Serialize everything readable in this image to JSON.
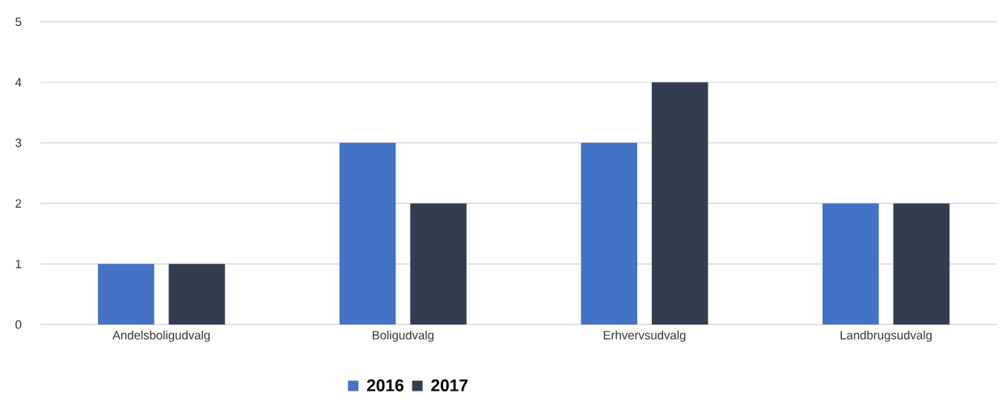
{
  "chart_data": {
    "type": "bar",
    "categories": [
      "Andelsboligudvalg",
      "Boligudvalg",
      "Erhvervsudvalg",
      "Landbrugsudvalg"
    ],
    "series": [
      {
        "name": "2016",
        "color": "#4472c4",
        "values": [
          1,
          3,
          3,
          2
        ]
      },
      {
        "name": "2017",
        "color": "#323e50",
        "values": [
          1,
          2,
          4,
          2
        ]
      }
    ],
    "ylim": [
      0,
      5
    ],
    "yticks": [
      0,
      1,
      2,
      3,
      4,
      5
    ],
    "grid": "y",
    "legend": "bottom"
  }
}
